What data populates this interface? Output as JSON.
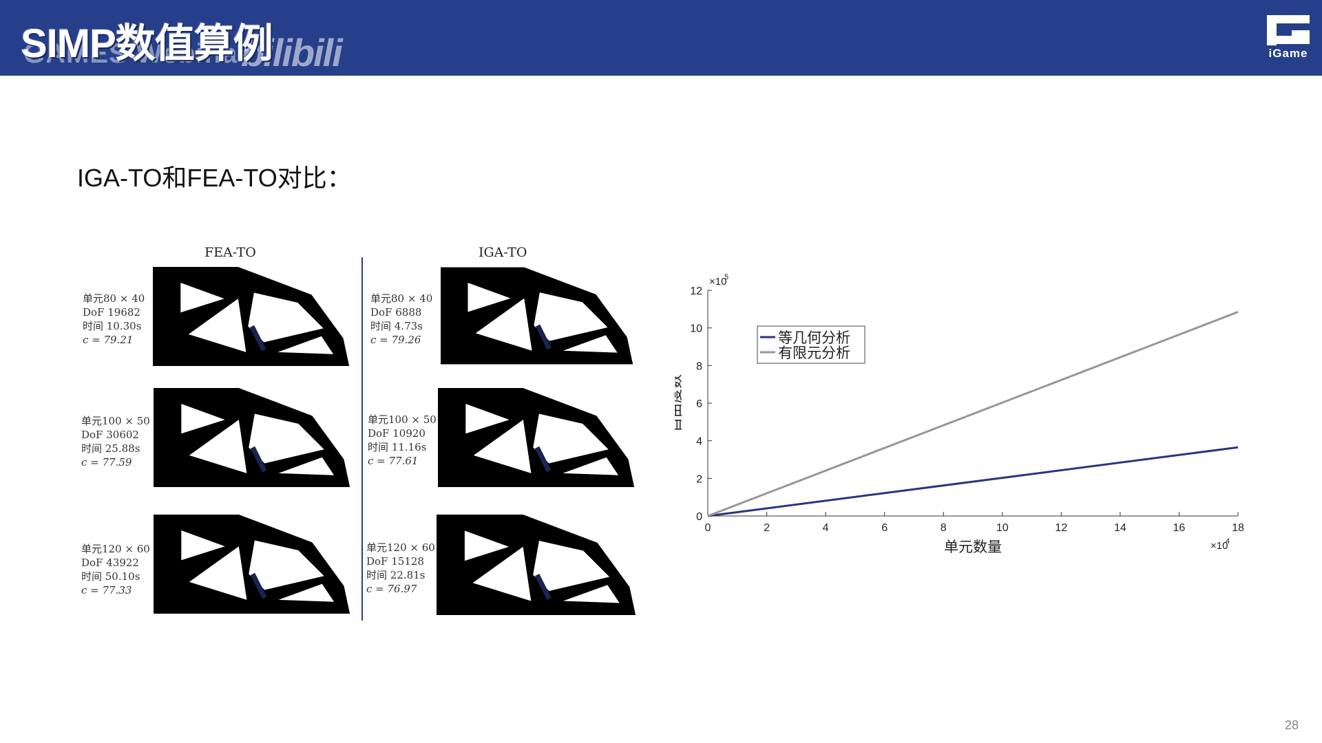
{
  "header": {
    "title": "SIMP数值算例",
    "watermark_text": "GAMES Webinar",
    "watermark_bili": "bilibili",
    "logo_text": "iGame",
    "bg_color": "#263f8a"
  },
  "subtitle": "IGA-TO和FEA-TO对比：",
  "comparison": {
    "fea_title": "FEA-TO",
    "iga_title": "IGA-TO",
    "fea_cases": [
      {
        "mesh": "单元80 × 40",
        "dof": "DoF 19682",
        "time": "时间 10.30s",
        "c": "c = 79.21"
      },
      {
        "mesh": "单元100 × 50",
        "dof": "DoF 30602",
        "time": "时间 25.88s",
        "c": "c = 77.59"
      },
      {
        "mesh": "单元120 × 60",
        "dof": "DoF 43922",
        "time": "时间 50.10s",
        "c": "c = 77.33"
      }
    ],
    "iga_cases": [
      {
        "mesh": "单元80 × 40",
        "dof": "DoF 6888",
        "time": "时间 4.73s",
        "c": "c = 79.26"
      },
      {
        "mesh": "单元100 × 50",
        "dof": "DoF 10920",
        "time": "时间 11.16s",
        "c": "c = 77.61"
      },
      {
        "mesh": "单元120 × 60",
        "dof": "DoF 15128",
        "time": "时间 22.81s",
        "c": "c = 76.97"
      }
    ]
  },
  "chart_data": {
    "type": "line",
    "xlabel": "单元数量",
    "ylabel": "自由度数",
    "x_multiplier": "×10",
    "x_exponent": "4",
    "y_multiplier": "×10",
    "y_exponent": "5",
    "xlim": [
      0,
      18
    ],
    "ylim": [
      0,
      12
    ],
    "xticks": [
      "0",
      "2",
      "4",
      "6",
      "8",
      "10",
      "12",
      "14",
      "16",
      "18"
    ],
    "yticks": [
      "0",
      "2",
      "4",
      "6",
      "8",
      "10",
      "12"
    ],
    "legend_position": "top-left",
    "series": [
      {
        "name": "等几何分析",
        "color": "#2b3580",
        "x": [
          0,
          18
        ],
        "y": [
          0,
          3.65
        ]
      },
      {
        "name": "有限元分析",
        "color": "#9a9596",
        "x": [
          0,
          18
        ],
        "y": [
          0,
          10.85
        ]
      }
    ]
  },
  "page_number": "28"
}
